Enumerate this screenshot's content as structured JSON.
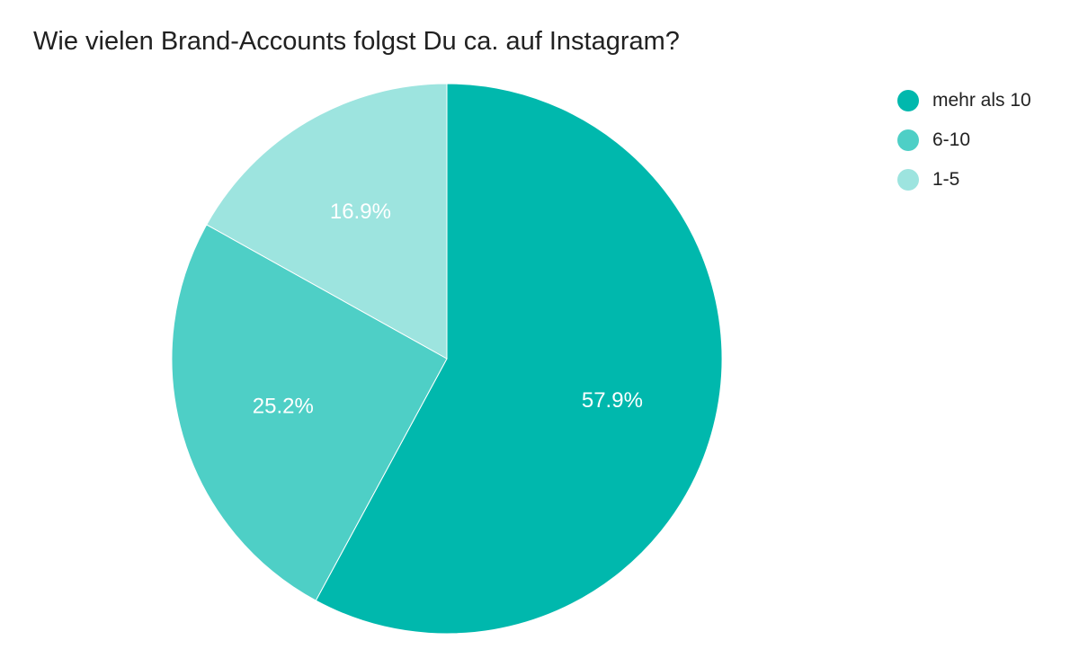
{
  "chart_data": {
    "type": "pie",
    "title": "Wie vielen Brand-Accounts folgst Du ca. auf Instagram?",
    "slices": [
      {
        "label": "mehr als 10",
        "value": 57.9,
        "display": "57.9%",
        "color": "#00b8ad"
      },
      {
        "label": "6-10",
        "value": 25.2,
        "display": "25.2%",
        "color": "#4ecfc6"
      },
      {
        "label": "1-5",
        "value": 16.9,
        "display": "16.9%",
        "color": "#9de4df"
      }
    ],
    "start_angle": "12 o'clock",
    "direction": "clockwise",
    "legend_position": "top-right"
  }
}
